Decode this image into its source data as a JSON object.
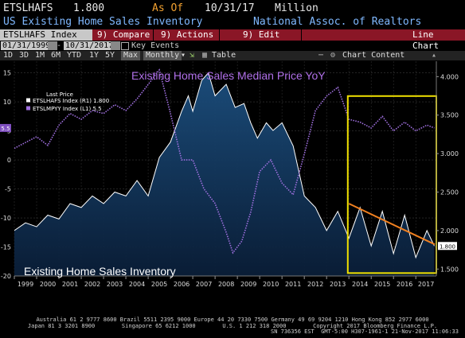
{
  "header": {
    "ticker": "ETSLHAFS",
    "last_value": "1.800",
    "as_of_label": "As Of",
    "as_of_date": "10/31/17",
    "units": "Million",
    "description": "US Existing Home Sales Inventory",
    "source": "National Assoc. of Realtors"
  },
  "toolbar": {
    "index_label": "ETSLHAFS Index",
    "compare_label": "9) Compare",
    "actions_label": "9) Actions",
    "edit_label": "9) Edit",
    "chart_type_label": "Line Chart"
  },
  "date_range": {
    "start": "01/31/1999",
    "end": "10/31/2017",
    "key_events_label": "Key Events"
  },
  "periods": [
    "1D",
    "3D",
    "1M",
    "6M",
    "YTD",
    "1Y",
    "5Y",
    "Max"
  ],
  "frequency_label": "Monthly",
  "table_label": "Table",
  "chart_content_label": "Chart Content",
  "footer": {
    "line1": "Australia 61 2 9777 8600 Brazil 5511 2395 9000 Europe 44 20 7330 7500 Germany 49 69 9204 1210 Hong Kong 852 2977 6000",
    "line2": "Japan 81 3 3201 8900        Singapore 65 6212 1000        U.S. 1 212 318 2000        Copyright 2017 Bloomberg Finance L.P.",
    "line3": "SN 736356 EST  GMT-5:00 H307-1961-1 21-Nov-2017 11:06:33"
  },
  "colors": {
    "inventory": "#ffffff",
    "inventory_fill": "#14345a",
    "price_yoy": "#a070e0",
    "trend": "#f08020",
    "highlight_box": "#f0e000"
  },
  "chart_data": {
    "type": "line",
    "annotations": {
      "price_title": "Existing  Home Sales Median Price YoY",
      "inventory_title": "Existing Home Sales Inventory"
    },
    "legend": {
      "header": "Last Price",
      "items": [
        "ETSLHAFS Index (R1) 1.800",
        "ETSLMPYY Index (L1) 5.5"
      ]
    },
    "x_ticks": [
      "1999",
      "2000",
      "2001",
      "2002",
      "2003",
      "2004",
      "2005",
      "2006",
      "2007",
      "2008",
      "2009",
      "2010",
      "2011",
      "2012",
      "2013",
      "2014",
      "2015",
      "2016",
      "2017"
    ],
    "xlim": [
      1999.0,
      2017.92
    ],
    "left_axis": {
      "ylim": [
        -20,
        17
      ],
      "ticks": [
        15,
        10,
        5,
        0,
        -5,
        -10,
        -15,
        -20
      ],
      "last_label": "5.5"
    },
    "right_axis": {
      "ylim": [
        1.41,
        4.2
      ],
      "ticks": [
        "4.000",
        "3.500",
        "3.000",
        "2.500",
        "2.000",
        "1.500"
      ],
      "last_label": "1.800"
    },
    "series": [
      {
        "name": "ETSLHAFS Index (R1)",
        "axis": "right",
        "x": [
          1999.0,
          1999.5,
          2000.0,
          2000.5,
          2001.0,
          2001.5,
          2002.0,
          2002.5,
          2003.0,
          2003.5,
          2004.0,
          2004.5,
          2005.0,
          2005.5,
          2006.0,
          2006.5,
          2006.8,
          2007.0,
          2007.4,
          2007.7,
          2008.0,
          2008.5,
          2008.9,
          2009.3,
          2009.6,
          2009.9,
          2010.3,
          2010.6,
          2011.0,
          2011.5,
          2012.0,
          2012.5,
          2013.0,
          2013.5,
          2014.0,
          2014.5,
          2015.0,
          2015.5,
          2016.0,
          2016.5,
          2017.0,
          2017.5,
          2017.83
        ],
        "values": [
          2.0,
          2.1,
          2.05,
          2.2,
          2.15,
          2.35,
          2.3,
          2.45,
          2.35,
          2.5,
          2.45,
          2.65,
          2.45,
          2.95,
          3.15,
          3.55,
          3.75,
          3.55,
          3.95,
          4.05,
          3.75,
          3.9,
          3.6,
          3.65,
          3.4,
          3.2,
          3.4,
          3.3,
          3.4,
          3.1,
          2.45,
          2.3,
          2.0,
          2.25,
          1.9,
          2.3,
          1.8,
          2.25,
          1.7,
          2.2,
          1.65,
          2.0,
          1.8
        ]
      },
      {
        "name": "ETSLMPYY Index (L1)",
        "axis": "left",
        "x": [
          1999.0,
          1999.5,
          2000.0,
          2000.5,
          2001.0,
          2001.5,
          2002.0,
          2002.5,
          2003.0,
          2003.5,
          2004.0,
          2004.5,
          2005.0,
          2005.5,
          2006.0,
          2006.5,
          2007.0,
          2007.5,
          2008.0,
          2008.5,
          2008.8,
          2009.2,
          2009.6,
          2010.0,
          2010.5,
          2011.0,
          2011.5,
          2012.0,
          2012.5,
          2013.0,
          2013.5,
          2014.0,
          2014.5,
          2015.0,
          2015.5,
          2016.0,
          2016.5,
          2017.0,
          2017.5,
          2017.83
        ],
        "values": [
          2.0,
          3.0,
          4.0,
          2.5,
          6.0,
          8.0,
          7.0,
          8.5,
          8.0,
          9.5,
          8.5,
          10.5,
          13.0,
          15.5,
          8.0,
          0.0,
          0.0,
          -5.0,
          -7.5,
          -12.5,
          -16.0,
          -14.0,
          -9.0,
          -2.0,
          0.0,
          -4.0,
          -6.0,
          1.0,
          8.5,
          11.0,
          12.5,
          7.0,
          6.5,
          5.5,
          7.5,
          5.0,
          6.5,
          5.0,
          6.0,
          5.5
        ]
      }
    ],
    "trendline": {
      "x": [
        2014.0,
        2017.85
      ],
      "y_right": [
        2.35,
        1.82
      ]
    },
    "highlight": {
      "x": [
        2013.95,
        2017.92
      ],
      "y_left": [
        -19.5,
        11.0
      ]
    }
  }
}
